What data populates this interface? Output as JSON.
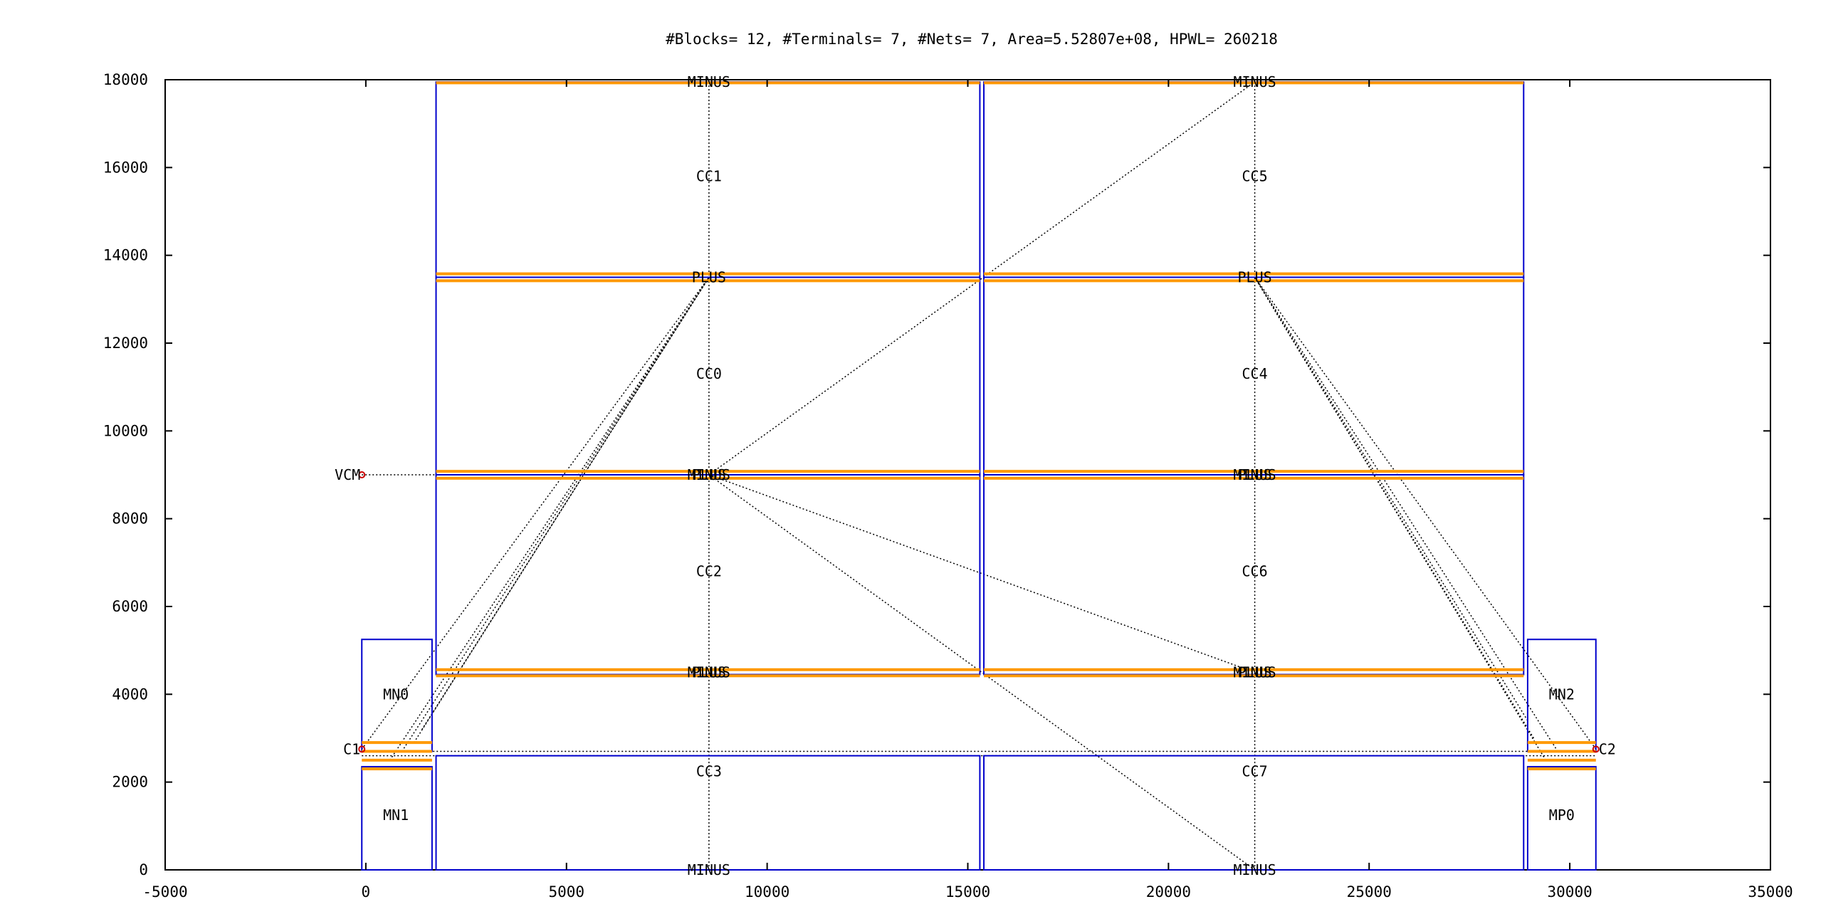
{
  "chart_data": {
    "type": "scatter",
    "title": "#Blocks= 12, #Terminals= 7, #Nets= 7, Area=5.52807e+08, HPWL= 260218",
    "xlabel": "",
    "ylabel": "",
    "xlim": [
      -5000,
      35000
    ],
    "ylim": [
      0,
      18000
    ],
    "x_ticks": [
      "-5000",
      "0",
      "5000",
      "10000",
      "15000",
      "20000",
      "25000",
      "30000",
      "35000"
    ],
    "y_ticks": [
      "0",
      "2000",
      "4000",
      "6000",
      "8000",
      "10000",
      "12000",
      "14000",
      "16000",
      "18000"
    ],
    "grid": false,
    "legend": "none",
    "colors": {
      "block": "#0000cc",
      "pin": "#ff9900",
      "net": "#000000",
      "terminal": "#cc0000"
    },
    "blocks": [
      {
        "name": "MN0",
        "x0": -100,
        "y0": 2700,
        "x1": 1650,
        "y1": 5250,
        "label_x": 750,
        "label_y": 4000
      },
      {
        "name": "MN1",
        "x0": -100,
        "y0": 0,
        "x1": 1650,
        "y1": 2350,
        "label_x": 750,
        "label_y": 1250
      },
      {
        "name": "CC3",
        "x0": 1750,
        "y0": 0,
        "x1": 15300,
        "y1": 2600,
        "label_x": 8550,
        "label_y": 2250
      },
      {
        "name": "CC2",
        "x0": 1750,
        "y0": 4450,
        "x1": 15300,
        "y1": 9000,
        "label_x": 8550,
        "label_y": 6800
      },
      {
        "name": "CC0",
        "x0": 1750,
        "y0": 9000,
        "x1": 15300,
        "y1": 13500,
        "label_x": 8550,
        "label_y": 11300
      },
      {
        "name": "CC1",
        "x0": 1750,
        "y0": 13500,
        "x1": 15300,
        "y1": 17950,
        "label_x": 8550,
        "label_y": 15800
      },
      {
        "name": "CC7",
        "x0": 15400,
        "y0": 0,
        "x1": 28850,
        "y1": 2600,
        "label_x": 22150,
        "label_y": 2250
      },
      {
        "name": "CC6",
        "x0": 15400,
        "y0": 4450,
        "x1": 28850,
        "y1": 9000,
        "label_x": 22150,
        "label_y": 6800
      },
      {
        "name": "CC4",
        "x0": 15400,
        "y0": 9000,
        "x1": 28850,
        "y1": 13500,
        "label_x": 22150,
        "label_y": 11300
      },
      {
        "name": "CC5",
        "x0": 15400,
        "y0": 13500,
        "x1": 28850,
        "y1": 17950,
        "label_x": 22150,
        "label_y": 15800
      },
      {
        "name": "MN2",
        "x0": 28950,
        "y0": 2700,
        "x1": 30650,
        "y1": 5250,
        "label_x": 29800,
        "label_y": 4000
      },
      {
        "name": "MP0",
        "x0": 28950,
        "y0": 0,
        "x1": 30650,
        "y1": 2350,
        "label_x": 29800,
        "label_y": 1250
      }
    ],
    "pin_bars": [
      {
        "x0": 1750,
        "x1": 15300,
        "y": 13420
      },
      {
        "x0": 1750,
        "x1": 15300,
        "y": 13580
      },
      {
        "x0": 15400,
        "x1": 28850,
        "y": 13420
      },
      {
        "x0": 15400,
        "x1": 28850,
        "y": 13580
      },
      {
        "x0": 1750,
        "x1": 15300,
        "y": 8920
      },
      {
        "x0": 1750,
        "x1": 15300,
        "y": 9080
      },
      {
        "x0": 15400,
        "x1": 28850,
        "y": 8920
      },
      {
        "x0": 15400,
        "x1": 28850,
        "y": 9080
      },
      {
        "x0": 1750,
        "x1": 15300,
        "y": 4420
      },
      {
        "x0": 1750,
        "x1": 15300,
        "y": 4560
      },
      {
        "x0": 15400,
        "x1": 28850,
        "y": 4420
      },
      {
        "x0": 15400,
        "x1": 28850,
        "y": 4560
      },
      {
        "x0": 1750,
        "x1": 15300,
        "y": 17930
      },
      {
        "x0": 15400,
        "x1": 28850,
        "y": 17930
      },
      {
        "x0": -100,
        "x1": 1650,
        "y": 2300
      },
      {
        "x0": -100,
        "x1": 1650,
        "y": 2500
      },
      {
        "x0": -100,
        "x1": 1650,
        "y": 2700
      },
      {
        "x0": -100,
        "x1": 1650,
        "y": 2900
      },
      {
        "x0": 28950,
        "x1": 30650,
        "y": 2300
      },
      {
        "x0": 28950,
        "x1": 30650,
        "y": 2500
      },
      {
        "x0": 28950,
        "x1": 30650,
        "y": 2700
      },
      {
        "x0": 28950,
        "x1": 30650,
        "y": 2900
      }
    ],
    "pin_labels": [
      {
        "text": "MINUS",
        "x": 8550,
        "y": 17950
      },
      {
        "text": "MINUS",
        "x": 22150,
        "y": 17950
      },
      {
        "text": "PLUS",
        "x": 8550,
        "y": 13500
      },
      {
        "text": "PLUS",
        "x": 22150,
        "y": 13500
      },
      {
        "text": "MINUS",
        "x": 8550,
        "y": 9000
      },
      {
        "text": "PLUS",
        "x": 8550,
        "y": 9000
      },
      {
        "text": "MINUS",
        "x": 22150,
        "y": 9000
      },
      {
        "text": "PLUS",
        "x": 22150,
        "y": 9000
      },
      {
        "text": "MINUS",
        "x": 8550,
        "y": 4500
      },
      {
        "text": "PLUS",
        "x": 8550,
        "y": 4500
      },
      {
        "text": "MINUS",
        "x": 22150,
        "y": 4500
      },
      {
        "text": "PLUS",
        "x": 22150,
        "y": 4500
      },
      {
        "text": "MINUS",
        "x": 8550,
        "y": 0
      },
      {
        "text": "MINUS",
        "x": 22150,
        "y": 0
      }
    ],
    "terminals": [
      {
        "name": "VCM",
        "x": -100,
        "y": 9000,
        "label_x": -100,
        "label_y": 9000
      },
      {
        "name": "C1",
        "x": -100,
        "y": 2750,
        "label_x": -100,
        "label_y": 2750
      },
      {
        "name": "C2",
        "x": 30650,
        "y": 2750,
        "label_x": 30650,
        "label_y": 2750
      }
    ],
    "nets": [
      [
        [
          -100,
          9000
        ],
        [
          8550,
          9000
        ]
      ],
      [
        [
          8550,
          17950
        ],
        [
          8550,
          0
        ]
      ],
      [
        [
          22150,
          17950
        ],
        [
          22150,
          0
        ]
      ],
      [
        [
          -100,
          2600
        ],
        [
          30650,
          2600
        ]
      ],
      [
        [
          -100,
          2700
        ],
        [
          30650,
          2700
        ]
      ],
      [
        [
          -100,
          2750
        ],
        [
          8550,
          13500
        ]
      ],
      [
        [
          600,
          2500
        ],
        [
          8550,
          13500
        ]
      ],
      [
        [
          900,
          2700
        ],
        [
          8550,
          13500
        ]
      ],
      [
        [
          1200,
          2900
        ],
        [
          8550,
          13500
        ]
      ],
      [
        [
          1400,
          3200
        ],
        [
          8550,
          13500
        ]
      ],
      [
        [
          30650,
          2750
        ],
        [
          22150,
          13500
        ]
      ],
      [
        [
          29700,
          2700
        ],
        [
          22150,
          13500
        ]
      ],
      [
        [
          29400,
          2500
        ],
        [
          22150,
          13500
        ]
      ],
      [
        [
          29100,
          3000
        ],
        [
          22150,
          13500
        ]
      ],
      [
        [
          28950,
          3400
        ],
        [
          22150,
          13500
        ]
      ],
      [
        [
          8550,
          9000
        ],
        [
          22150,
          17950
        ]
      ],
      [
        [
          8550,
          9000
        ],
        [
          22150,
          4500
        ]
      ],
      [
        [
          8550,
          9000
        ],
        [
          22150,
          0
        ]
      ]
    ]
  }
}
